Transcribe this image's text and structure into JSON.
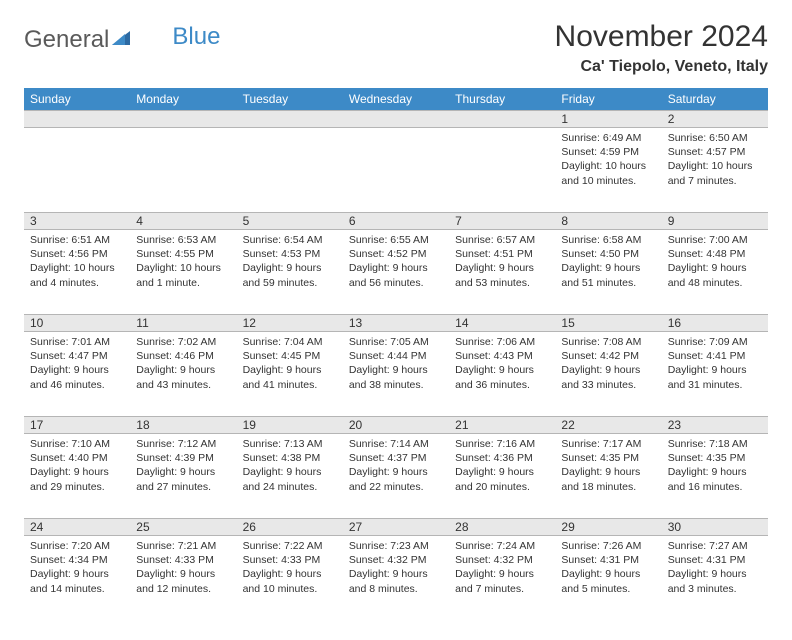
{
  "logo": {
    "part1": "General",
    "part2": "Blue"
  },
  "title": "November 2024",
  "location": "Ca' Tiepolo, Veneto, Italy",
  "weekdays": [
    "Sunday",
    "Monday",
    "Tuesday",
    "Wednesday",
    "Thursday",
    "Friday",
    "Saturday"
  ],
  "colors": {
    "header_bg": "#3d8ac7",
    "daynum_bg": "#e8e8e8",
    "border": "#b5b5b5",
    "text": "#333333",
    "logo_gray": "#5a5a5a",
    "logo_blue": "#3d8ac7"
  },
  "weeks": [
    {
      "nums": [
        "",
        "",
        "",
        "",
        "",
        "1",
        "2"
      ],
      "cells": [
        {},
        {},
        {},
        {},
        {},
        {
          "sunrise": "Sunrise: 6:49 AM",
          "sunset": "Sunset: 4:59 PM",
          "daylight1": "Daylight: 10 hours",
          "daylight2": "and 10 minutes."
        },
        {
          "sunrise": "Sunrise: 6:50 AM",
          "sunset": "Sunset: 4:57 PM",
          "daylight1": "Daylight: 10 hours",
          "daylight2": "and 7 minutes."
        }
      ]
    },
    {
      "nums": [
        "3",
        "4",
        "5",
        "6",
        "7",
        "8",
        "9"
      ],
      "cells": [
        {
          "sunrise": "Sunrise: 6:51 AM",
          "sunset": "Sunset: 4:56 PM",
          "daylight1": "Daylight: 10 hours",
          "daylight2": "and 4 minutes."
        },
        {
          "sunrise": "Sunrise: 6:53 AM",
          "sunset": "Sunset: 4:55 PM",
          "daylight1": "Daylight: 10 hours",
          "daylight2": "and 1 minute."
        },
        {
          "sunrise": "Sunrise: 6:54 AM",
          "sunset": "Sunset: 4:53 PM",
          "daylight1": "Daylight: 9 hours",
          "daylight2": "and 59 minutes."
        },
        {
          "sunrise": "Sunrise: 6:55 AM",
          "sunset": "Sunset: 4:52 PM",
          "daylight1": "Daylight: 9 hours",
          "daylight2": "and 56 minutes."
        },
        {
          "sunrise": "Sunrise: 6:57 AM",
          "sunset": "Sunset: 4:51 PM",
          "daylight1": "Daylight: 9 hours",
          "daylight2": "and 53 minutes."
        },
        {
          "sunrise": "Sunrise: 6:58 AM",
          "sunset": "Sunset: 4:50 PM",
          "daylight1": "Daylight: 9 hours",
          "daylight2": "and 51 minutes."
        },
        {
          "sunrise": "Sunrise: 7:00 AM",
          "sunset": "Sunset: 4:48 PM",
          "daylight1": "Daylight: 9 hours",
          "daylight2": "and 48 minutes."
        }
      ]
    },
    {
      "nums": [
        "10",
        "11",
        "12",
        "13",
        "14",
        "15",
        "16"
      ],
      "cells": [
        {
          "sunrise": "Sunrise: 7:01 AM",
          "sunset": "Sunset: 4:47 PM",
          "daylight1": "Daylight: 9 hours",
          "daylight2": "and 46 minutes."
        },
        {
          "sunrise": "Sunrise: 7:02 AM",
          "sunset": "Sunset: 4:46 PM",
          "daylight1": "Daylight: 9 hours",
          "daylight2": "and 43 minutes."
        },
        {
          "sunrise": "Sunrise: 7:04 AM",
          "sunset": "Sunset: 4:45 PM",
          "daylight1": "Daylight: 9 hours",
          "daylight2": "and 41 minutes."
        },
        {
          "sunrise": "Sunrise: 7:05 AM",
          "sunset": "Sunset: 4:44 PM",
          "daylight1": "Daylight: 9 hours",
          "daylight2": "and 38 minutes."
        },
        {
          "sunrise": "Sunrise: 7:06 AM",
          "sunset": "Sunset: 4:43 PM",
          "daylight1": "Daylight: 9 hours",
          "daylight2": "and 36 minutes."
        },
        {
          "sunrise": "Sunrise: 7:08 AM",
          "sunset": "Sunset: 4:42 PM",
          "daylight1": "Daylight: 9 hours",
          "daylight2": "and 33 minutes."
        },
        {
          "sunrise": "Sunrise: 7:09 AM",
          "sunset": "Sunset: 4:41 PM",
          "daylight1": "Daylight: 9 hours",
          "daylight2": "and 31 minutes."
        }
      ]
    },
    {
      "nums": [
        "17",
        "18",
        "19",
        "20",
        "21",
        "22",
        "23"
      ],
      "cells": [
        {
          "sunrise": "Sunrise: 7:10 AM",
          "sunset": "Sunset: 4:40 PM",
          "daylight1": "Daylight: 9 hours",
          "daylight2": "and 29 minutes."
        },
        {
          "sunrise": "Sunrise: 7:12 AM",
          "sunset": "Sunset: 4:39 PM",
          "daylight1": "Daylight: 9 hours",
          "daylight2": "and 27 minutes."
        },
        {
          "sunrise": "Sunrise: 7:13 AM",
          "sunset": "Sunset: 4:38 PM",
          "daylight1": "Daylight: 9 hours",
          "daylight2": "and 24 minutes."
        },
        {
          "sunrise": "Sunrise: 7:14 AM",
          "sunset": "Sunset: 4:37 PM",
          "daylight1": "Daylight: 9 hours",
          "daylight2": "and 22 minutes."
        },
        {
          "sunrise": "Sunrise: 7:16 AM",
          "sunset": "Sunset: 4:36 PM",
          "daylight1": "Daylight: 9 hours",
          "daylight2": "and 20 minutes."
        },
        {
          "sunrise": "Sunrise: 7:17 AM",
          "sunset": "Sunset: 4:35 PM",
          "daylight1": "Daylight: 9 hours",
          "daylight2": "and 18 minutes."
        },
        {
          "sunrise": "Sunrise: 7:18 AM",
          "sunset": "Sunset: 4:35 PM",
          "daylight1": "Daylight: 9 hours",
          "daylight2": "and 16 minutes."
        }
      ]
    },
    {
      "nums": [
        "24",
        "25",
        "26",
        "27",
        "28",
        "29",
        "30"
      ],
      "cells": [
        {
          "sunrise": "Sunrise: 7:20 AM",
          "sunset": "Sunset: 4:34 PM",
          "daylight1": "Daylight: 9 hours",
          "daylight2": "and 14 minutes."
        },
        {
          "sunrise": "Sunrise: 7:21 AM",
          "sunset": "Sunset: 4:33 PM",
          "daylight1": "Daylight: 9 hours",
          "daylight2": "and 12 minutes."
        },
        {
          "sunrise": "Sunrise: 7:22 AM",
          "sunset": "Sunset: 4:33 PM",
          "daylight1": "Daylight: 9 hours",
          "daylight2": "and 10 minutes."
        },
        {
          "sunrise": "Sunrise: 7:23 AM",
          "sunset": "Sunset: 4:32 PM",
          "daylight1": "Daylight: 9 hours",
          "daylight2": "and 8 minutes."
        },
        {
          "sunrise": "Sunrise: 7:24 AM",
          "sunset": "Sunset: 4:32 PM",
          "daylight1": "Daylight: 9 hours",
          "daylight2": "and 7 minutes."
        },
        {
          "sunrise": "Sunrise: 7:26 AM",
          "sunset": "Sunset: 4:31 PM",
          "daylight1": "Daylight: 9 hours",
          "daylight2": "and 5 minutes."
        },
        {
          "sunrise": "Sunrise: 7:27 AM",
          "sunset": "Sunset: 4:31 PM",
          "daylight1": "Daylight: 9 hours",
          "daylight2": "and 3 minutes."
        }
      ]
    }
  ]
}
